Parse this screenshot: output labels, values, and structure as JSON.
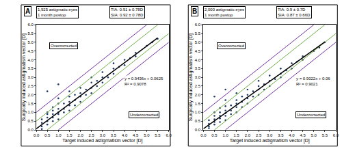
{
  "chart_data": [
    {
      "type": "scatter",
      "panel_label": "A",
      "info": [
        "1,925 astigmatic eyes",
        "1 month postop"
      ],
      "stats": [
        "TIA: 0.91 ± 0.78D",
        "SIA: 0.92 ± 0.78D"
      ],
      "annotations": [
        "Overcorrected",
        "Undercorrected"
      ],
      "equation": [
        "y = 0.9436x + 0.0625",
        "R² = 0.9078"
      ],
      "xlabel": "Target induced astigmatism vector [D]",
      "ylabel": "Surgically induced astigmatism vector [D]",
      "xlim": [
        0,
        6
      ],
      "ylim": [
        0,
        6
      ],
      "xticks": [
        {
          "value": 0,
          "label": "0.0"
        },
        0.5,
        {
          "value": 1,
          "label": "1.0"
        },
        1.5,
        {
          "value": 2,
          "label": "2.0"
        },
        2.5,
        {
          "value": 3,
          "label": "3.0"
        },
        3.5,
        {
          "value": 4,
          "label": "4.0"
        },
        4.5,
        {
          "value": 5,
          "label": "5.0"
        },
        5.5,
        {
          "value": 6,
          "label": "6.0"
        }
      ],
      "yticks": [
        {
          "value": 0,
          "label": "0.0"
        },
        0.5,
        {
          "value": 1,
          "label": "1.0"
        },
        1.5,
        {
          "value": 2,
          "label": "2.0"
        },
        2.5,
        {
          "value": 3,
          "label": "3.0"
        },
        3.5,
        {
          "value": 4,
          "label": "4.0"
        },
        4.5,
        {
          "value": 5,
          "label": "5.0"
        },
        5.5,
        {
          "value": 6,
          "label": "6.0"
        }
      ],
      "grid": false,
      "series": [
        {
          "type": "scatter",
          "marker": "circle",
          "color": "#1f3864",
          "x": [
            0.25,
            0.25,
            0.25,
            0.25,
            0.5,
            0.5,
            0.5,
            0.5,
            0.5,
            0.5,
            0.75,
            0.75,
            0.75,
            0.75,
            0.75,
            1,
            1,
            1,
            1,
            1,
            1,
            1,
            1.25,
            1.25,
            1.25,
            1.5,
            1.5,
            1.5,
            1.5,
            1.5,
            1.75,
            1.75,
            1.75,
            2,
            2,
            2,
            2,
            2.25,
            2.25,
            2.5,
            2.5,
            2.5,
            2.5,
            2.75,
            2.75,
            3,
            3,
            3,
            3.25,
            3.5,
            3.5,
            3.5,
            3.75,
            4,
            4,
            4.25,
            4.5,
            4.5,
            5,
            5.25,
            5.5
          ],
          "values": [
            0.05,
            0.2,
            0.4,
            0.6,
            0.3,
            0.5,
            0.7,
            0.9,
            1.0,
            2.2,
            0.5,
            0.7,
            0.9,
            1.1,
            1.3,
            0.6,
            0.9,
            1.0,
            1.2,
            1.5,
            1.8,
            2.6,
            1.0,
            1.2,
            1.5,
            1.1,
            1.4,
            1.6,
            1.9,
            2.2,
            1.4,
            1.7,
            2.0,
            1.6,
            1.9,
            2.1,
            2.4,
            2.0,
            2.3,
            2.1,
            2.4,
            2.7,
            3.0,
            2.5,
            2.8,
            2.7,
            3.0,
            3.3,
            3.0,
            3.2,
            3.5,
            3.8,
            3.6,
            3.7,
            4.0,
            4.1,
            4.2,
            4.4,
            4.8,
            5.0,
            5.2
          ]
        },
        {
          "type": "line",
          "line_style": "solid",
          "color": "#7030a0",
          "x": [
            0,
            5
          ],
          "values": [
            1,
            6
          ]
        },
        {
          "type": "line",
          "line_style": "solid",
          "color": "#7030a0",
          "x": [
            1,
            6
          ],
          "values": [
            0,
            5
          ]
        },
        {
          "type": "line",
          "line_style": "solid",
          "color": "#70ad47",
          "x": [
            0,
            5.5
          ],
          "values": [
            0.5,
            6
          ]
        },
        {
          "type": "line",
          "line_style": "solid",
          "color": "#70ad47",
          "x": [
            0.5,
            6
          ],
          "values": [
            0,
            5.5
          ]
        },
        {
          "type": "line",
          "line_style": "solid",
          "color": "#000000",
          "x": [
            0,
            5.5
          ],
          "values": [
            0.0625,
            5.2523
          ]
        }
      ]
    },
    {
      "type": "scatter",
      "panel_label": "B",
      "info": [
        "2,000 astigmatic eyes",
        "1 month postop"
      ],
      "stats": [
        "TIA: 0.9 ± 0.7D",
        "SIA: 0.87 ± 0.66D"
      ],
      "annotations": [
        "Overcorrected",
        "Undercorrected"
      ],
      "equation": [
        "y = 0.9022x + 0.06",
        "R² = 0.9021"
      ],
      "xlabel": "Target induced astigmatism vector [D]",
      "ylabel": "Surgically induced astigmatism vector [D]",
      "xlim": [
        0,
        6
      ],
      "ylim": [
        0,
        6
      ],
      "xticks": [
        {
          "value": 0,
          "label": "0.0"
        },
        0.5,
        {
          "value": 1,
          "label": "1.0"
        },
        1.5,
        {
          "value": 2,
          "label": "2.0"
        },
        2.5,
        {
          "value": 3,
          "label": "3.0"
        },
        3.5,
        {
          "value": 4,
          "label": "4.0"
        },
        4.5,
        {
          "value": 5,
          "label": "5.0"
        },
        5.5,
        {
          "value": 6,
          "label": "6.0"
        }
      ],
      "yticks": [
        {
          "value": 0,
          "label": "0.0"
        },
        0.5,
        {
          "value": 1,
          "label": "1.0"
        },
        1.5,
        {
          "value": 2,
          "label": "2.0"
        },
        2.5,
        {
          "value": 3,
          "label": "3.0"
        },
        3.5,
        {
          "value": 4,
          "label": "4.0"
        },
        4.5,
        {
          "value": 5,
          "label": "5.0"
        },
        5.5,
        {
          "value": 6,
          "label": "6.0"
        }
      ],
      "grid": false,
      "series": [
        {
          "type": "scatter",
          "marker": "circle",
          "color": "#1f3864",
          "x": [
            0.25,
            0.25,
            0.25,
            0.25,
            0.5,
            0.5,
            0.5,
            0.5,
            0.5,
            0.5,
            0.75,
            0.75,
            0.75,
            0.75,
            0.75,
            1,
            1,
            1,
            1,
            1,
            1,
            1,
            1.25,
            1.25,
            1.25,
            1.5,
            1.5,
            1.5,
            1.5,
            1.5,
            1.75,
            1.75,
            1.75,
            2,
            2,
            2,
            2,
            2.25,
            2.25,
            2.5,
            2.5,
            2.5,
            2.5,
            2.75,
            2.75,
            3,
            3,
            3,
            3.25,
            3.5,
            3.5,
            3.5,
            3.75,
            4,
            4,
            4.25,
            4.5,
            4.5,
            5,
            5.25,
            5.5
          ],
          "values": [
            0.1,
            0.2,
            0.35,
            0.55,
            0.3,
            0.45,
            0.6,
            0.8,
            1.0,
            1.9,
            0.45,
            0.65,
            0.8,
            1.0,
            1.25,
            0.55,
            0.8,
            0.95,
            1.1,
            1.35,
            1.7,
            2.3,
            0.9,
            1.1,
            1.4,
            1.0,
            1.3,
            1.5,
            1.7,
            2.1,
            1.3,
            1.6,
            1.9,
            1.5,
            1.8,
            2.0,
            2.3,
            1.9,
            2.2,
            2.0,
            2.3,
            2.5,
            2.8,
            2.3,
            2.6,
            2.5,
            2.8,
            3.1,
            2.9,
            3.0,
            3.2,
            3.5,
            3.4,
            3.5,
            3.8,
            3.9,
            4.0,
            4.2,
            4.5,
            4.7,
            5.0
          ]
        },
        {
          "type": "line",
          "line_style": "solid",
          "color": "#7030a0",
          "x": [
            0,
            5
          ],
          "values": [
            1,
            6
          ]
        },
        {
          "type": "line",
          "line_style": "solid",
          "color": "#7030a0",
          "x": [
            1,
            6
          ],
          "values": [
            0,
            5
          ]
        },
        {
          "type": "line",
          "line_style": "solid",
          "color": "#70ad47",
          "x": [
            0,
            5.5
          ],
          "values": [
            0.5,
            6
          ]
        },
        {
          "type": "line",
          "line_style": "solid",
          "color": "#70ad47",
          "x": [
            0.5,
            6
          ],
          "values": [
            0,
            5.5
          ]
        },
        {
          "type": "line",
          "line_style": "solid",
          "color": "#000000",
          "x": [
            0,
            5.5
          ],
          "values": [
            0.06,
            5.0221
          ]
        }
      ]
    }
  ]
}
